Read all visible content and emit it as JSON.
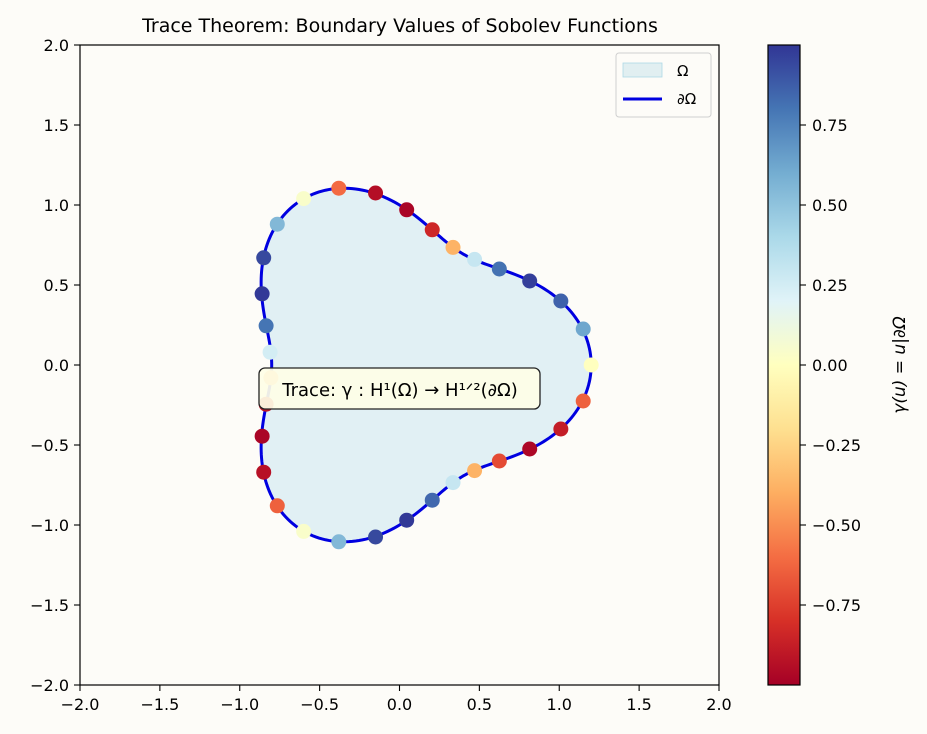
{
  "chart_data": {
    "type": "scatter",
    "title": "Trace Theorem: Boundary Values of Sobolev Functions",
    "xlabel": "",
    "ylabel": "",
    "xlim": [
      -2.0,
      2.0
    ],
    "ylim": [
      -2.0,
      2.0
    ],
    "x_ticks": [
      "−2.0",
      "−1.5",
      "−1.0",
      "−0.5",
      "0.0",
      "0.5",
      "1.0",
      "1.5",
      "2.0"
    ],
    "y_ticks": [
      "−2.0",
      "−1.5",
      "−1.0",
      "−0.5",
      "0.0",
      "0.5",
      "1.0",
      "1.5",
      "2.0"
    ],
    "x_tick_values": [
      -2.0,
      -1.5,
      -1.0,
      -0.5,
      0.0,
      0.5,
      1.0,
      1.5,
      2.0
    ],
    "y_tick_values": [
      -2.0,
      -1.5,
      -1.0,
      -0.5,
      0.0,
      0.5,
      1.0,
      1.5,
      2.0
    ],
    "grid": false,
    "legend": {
      "placement": "top-right",
      "entries": [
        {
          "label": "Ω",
          "kind": "patch",
          "color": "#add8e6"
        },
        {
          "label": "∂Ω",
          "kind": "line",
          "color": "#0000e0"
        }
      ]
    },
    "region_fill_color": "#e1f0f4",
    "boundary_color": "#0000e0",
    "boundary_curve": {
      "r0": 1.0,
      "amplitude": 0.2,
      "lobes": 3
    },
    "boundary_points": [
      {
        "x": 1.2,
        "y": 0.0,
        "value": 0.0
      },
      {
        "x": 1.15,
        "y": 0.225,
        "value": 0.62
      },
      {
        "x": 1.01,
        "y": 0.4,
        "value": 0.86
      },
      {
        "x": 0.815,
        "y": 0.525,
        "value": 0.97
      },
      {
        "x": 0.625,
        "y": 0.6,
        "value": 0.81
      },
      {
        "x": 0.47,
        "y": 0.66,
        "value": 0.3
      },
      {
        "x": 0.335,
        "y": 0.735,
        "value": -0.38
      },
      {
        "x": 0.205,
        "y": 0.845,
        "value": -0.84
      },
      {
        "x": 0.045,
        "y": 0.97,
        "value": -0.98
      },
      {
        "x": -0.15,
        "y": 1.075,
        "value": -0.94
      },
      {
        "x": -0.38,
        "y": 1.105,
        "value": -0.61
      },
      {
        "x": -0.6,
        "y": 1.04,
        "value": 0.04
      },
      {
        "x": -0.765,
        "y": 0.88,
        "value": 0.55
      },
      {
        "x": -0.85,
        "y": 0.67,
        "value": 0.94
      },
      {
        "x": -0.86,
        "y": 0.445,
        "value": 0.99
      },
      {
        "x": -0.835,
        "y": 0.245,
        "value": 0.8
      },
      {
        "x": -0.81,
        "y": 0.08,
        "value": 0.25
      },
      {
        "x": -0.805,
        "y": -0.08,
        "value": -0.4
      },
      {
        "x": -0.835,
        "y": -0.245,
        "value": -0.9
      },
      {
        "x": -0.86,
        "y": -0.445,
        "value": -0.98
      },
      {
        "x": -0.85,
        "y": -0.67,
        "value": -0.93
      },
      {
        "x": -0.765,
        "y": -0.88,
        "value": -0.64
      },
      {
        "x": -0.6,
        "y": -1.04,
        "value": 0.04
      },
      {
        "x": -0.38,
        "y": -1.105,
        "value": 0.55
      },
      {
        "x": -0.15,
        "y": -1.075,
        "value": 0.94
      },
      {
        "x": 0.045,
        "y": -0.97,
        "value": 0.99
      },
      {
        "x": 0.205,
        "y": -0.845,
        "value": 0.84
      },
      {
        "x": 0.335,
        "y": -0.735,
        "value": 0.3
      },
      {
        "x": 0.47,
        "y": -0.66,
        "value": -0.38
      },
      {
        "x": 0.625,
        "y": -0.6,
        "value": -0.71
      },
      {
        "x": 0.815,
        "y": -0.525,
        "value": -0.97
      },
      {
        "x": 1.01,
        "y": -0.4,
        "value": -0.88
      },
      {
        "x": 1.15,
        "y": -0.225,
        "value": -0.64
      }
    ],
    "annotation": {
      "text": "Trace: γ : H¹(Ω) → H¹ᐟ²(∂Ω)",
      "x": 0.0,
      "y": -0.15
    },
    "colorbar": {
      "label": "γ(u) = u|∂Ω",
      "range": [
        -1.0,
        1.0
      ],
      "tick_values": [
        -0.75,
        -0.5,
        -0.25,
        0.0,
        0.25,
        0.5,
        0.75
      ],
      "tick_labels": [
        "−0.75",
        "−0.50",
        "−0.25",
        "0.00",
        "0.25",
        "0.50",
        "0.75"
      ],
      "colormap": "RdYlBu",
      "stops": [
        "#a50026",
        "#d73027",
        "#f46d43",
        "#fdae61",
        "#fee090",
        "#ffffbf",
        "#e0f3f8",
        "#abd9e9",
        "#74add1",
        "#4575b4",
        "#313695"
      ]
    }
  }
}
